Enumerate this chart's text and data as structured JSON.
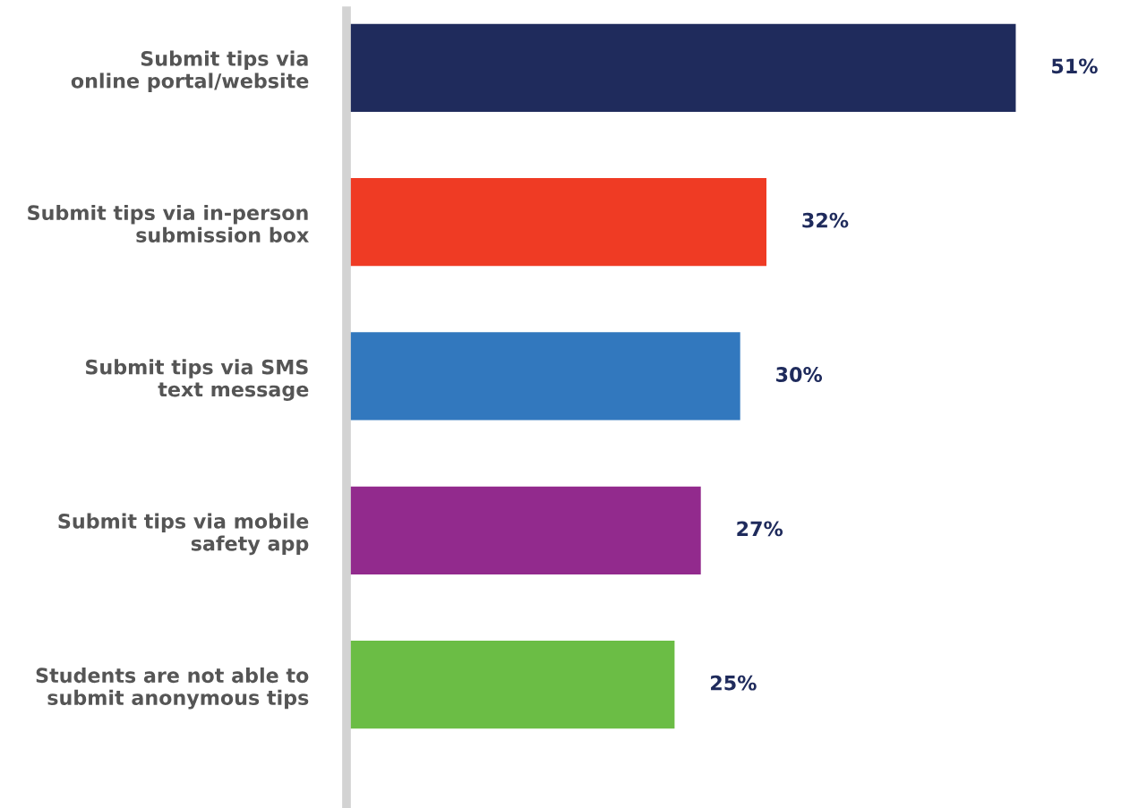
{
  "chart_data": {
    "type": "bar",
    "orientation": "horizontal",
    "categories": [
      "Submit tips via\nonline portal/website",
      "Submit tips via in-person\nsubmission box",
      "Submit tips via SMS\ntext message",
      "Submit tips via mobile\nsafety app",
      "Students are not able to\nsubmit anonymous tips"
    ],
    "values": [
      51,
      32,
      30,
      27,
      25
    ],
    "value_labels": [
      "51%",
      "32%",
      "30%",
      "27%",
      "25%"
    ],
    "colors": [
      "#1f2b5c",
      "#ef3b24",
      "#3278be",
      "#922a8d",
      "#6bbd45"
    ],
    "grid": false,
    "legend": false
  }
}
